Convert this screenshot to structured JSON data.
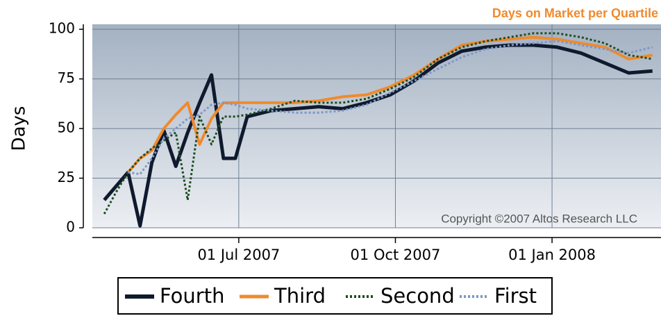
{
  "chart_data": {
    "type": "line",
    "title": "Days on Market per Quartile",
    "y_label": "Days",
    "annotation": "Copyright ©2007 Altos Research LLC",
    "x": [
      "2007-04-13",
      "2007-04-20",
      "2007-04-27",
      "2007-05-04",
      "2007-05-11",
      "2007-05-18",
      "2007-05-25",
      "2007-06-01",
      "2007-06-08",
      "2007-06-15",
      "2007-06-22",
      "2007-06-29",
      "2007-07-06",
      "2007-07-20",
      "2007-08-03",
      "2007-08-17",
      "2007-08-31",
      "2007-09-14",
      "2007-09-28",
      "2007-10-12",
      "2007-10-26",
      "2007-11-09",
      "2007-11-23",
      "2007-12-07",
      "2007-12-21",
      "2008-01-04",
      "2008-01-18",
      "2008-02-01",
      "2008-02-15",
      "2008-02-29"
    ],
    "series": [
      {
        "name": "Fourth",
        "color": "#0f1a2e",
        "width": 5,
        "dash": "solid",
        "values": [
          14,
          21,
          28,
          1,
          33,
          49,
          31,
          48,
          63,
          77,
          35,
          35,
          56,
          59,
          60,
          61,
          60,
          63,
          67,
          74,
          83,
          89,
          91,
          92,
          92,
          91,
          88,
          83,
          78,
          79
        ]
      },
      {
        "name": "Third",
        "color": "#f08a2c",
        "width": 4,
        "dash": "solid",
        "values": [
          null,
          null,
          28,
          35,
          39,
          50,
          57,
          63,
          42,
          55,
          63,
          63,
          63,
          63,
          63,
          64,
          66,
          67,
          71,
          77,
          85,
          92,
          94,
          95,
          96,
          95,
          93,
          91,
          85,
          87
        ]
      },
      {
        "name": "Second",
        "color": "#1e4d1e",
        "width": 3,
        "dash": "dotted",
        "values": [
          7,
          18,
          28,
          35,
          40,
          44,
          48,
          14,
          56,
          42,
          56,
          56,
          57,
          60,
          64,
          63,
          63,
          65,
          70,
          76,
          85,
          91,
          94,
          96,
          98,
          98,
          96,
          93,
          87,
          85
        ]
      },
      {
        "name": "First",
        "color": "#7d97c8",
        "width": 3,
        "dash": "dotted",
        "values": [
          null,
          null,
          28,
          27,
          35,
          45,
          50,
          55,
          57,
          62,
          63,
          62,
          60,
          59,
          58,
          58,
          59,
          62,
          68,
          74,
          80,
          86,
          90,
          92,
          93,
          94,
          92,
          90,
          88,
          91
        ]
      }
    ],
    "xlim": [
      "2007-04-06",
      "2008-03-05"
    ],
    "xticks": [
      {
        "value": "2007-07-01",
        "label": "01 Jul 2007"
      },
      {
        "value": "2007-10-01",
        "label": "01 Oct 2007"
      },
      {
        "value": "2008-01-01",
        "label": "01 Jan 2008"
      }
    ],
    "ylim": [
      0,
      102.5
    ],
    "yticks": [
      0,
      25,
      50,
      75,
      100
    ],
    "grid": true,
    "legend": "bottom"
  }
}
